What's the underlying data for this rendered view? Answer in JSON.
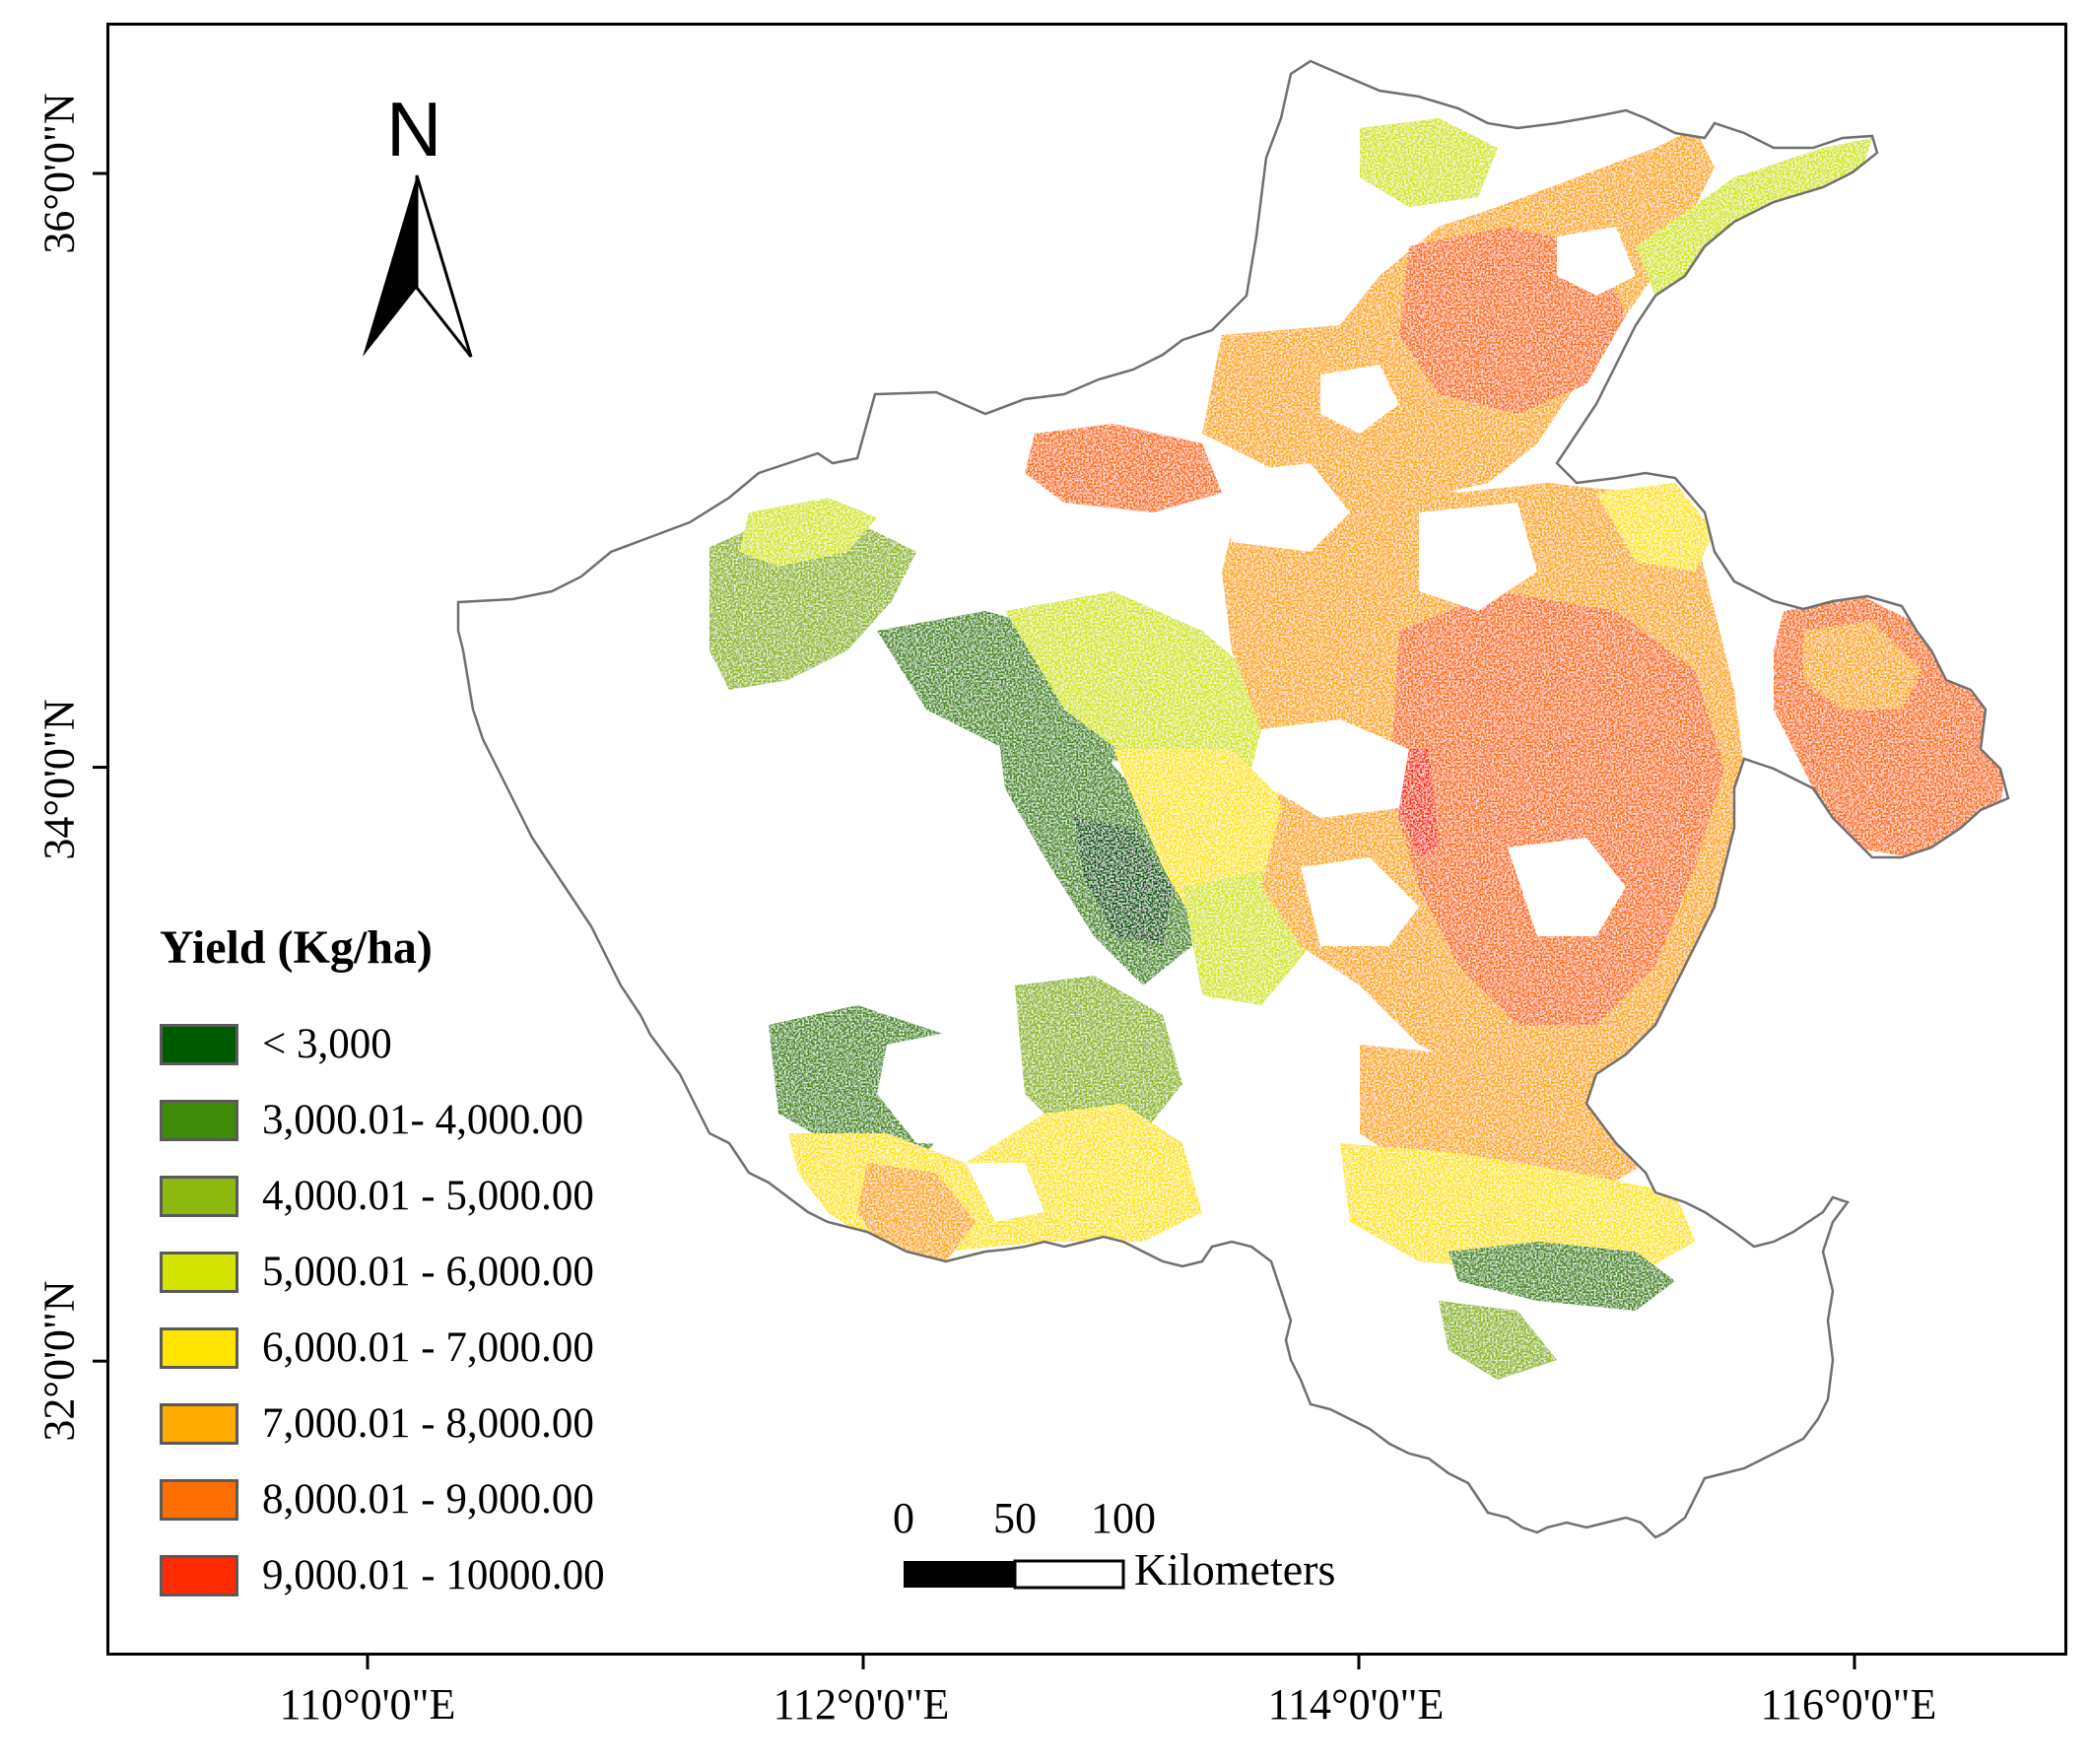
{
  "north_arrow": {
    "letter": "N"
  },
  "latitude_labels": [
    {
      "label": "36°0'0\"N",
      "lat": 36
    },
    {
      "label": "34°0'0\"N",
      "lat": 34
    },
    {
      "label": "32°0'0\"N",
      "lat": 32
    }
  ],
  "longitude_labels": [
    {
      "label": "110°0'0\"E",
      "lon": 110
    },
    {
      "label": "112°0'0\"E",
      "lon": 112
    },
    {
      "label": "114°0'0\"E",
      "lon": 114
    },
    {
      "label": "116°0'0\"E",
      "lon": 116
    }
  ],
  "legend": {
    "title": "Yield (Kg/ha)",
    "items": [
      {
        "label": "< 3,000",
        "color": "#005a00"
      },
      {
        "label": "3,000.01- 4,000.00",
        "color": "#3f8a08"
      },
      {
        "label": "4,000.01 - 5,000.00",
        "color": "#8db80f"
      },
      {
        "label": "5,000.01 - 6,000.00",
        "color": "#d4e600"
      },
      {
        "label": "6,000.01 - 7,000.00",
        "color": "#ffe500"
      },
      {
        "label": "7,000.01 - 8,000.00",
        "color": "#ffaa00"
      },
      {
        "label": "8,000.01 - 9,000.00",
        "color": "#ff6e00"
      },
      {
        "label": "9,000.01 - 10000.00",
        "color": "#ff2a00"
      }
    ]
  },
  "scale_bar": {
    "ticks": [
      "0",
      "50",
      "100"
    ],
    "unit": "Kilometers"
  },
  "colors": {
    "boundary": "#707070",
    "frame": "#000000"
  }
}
